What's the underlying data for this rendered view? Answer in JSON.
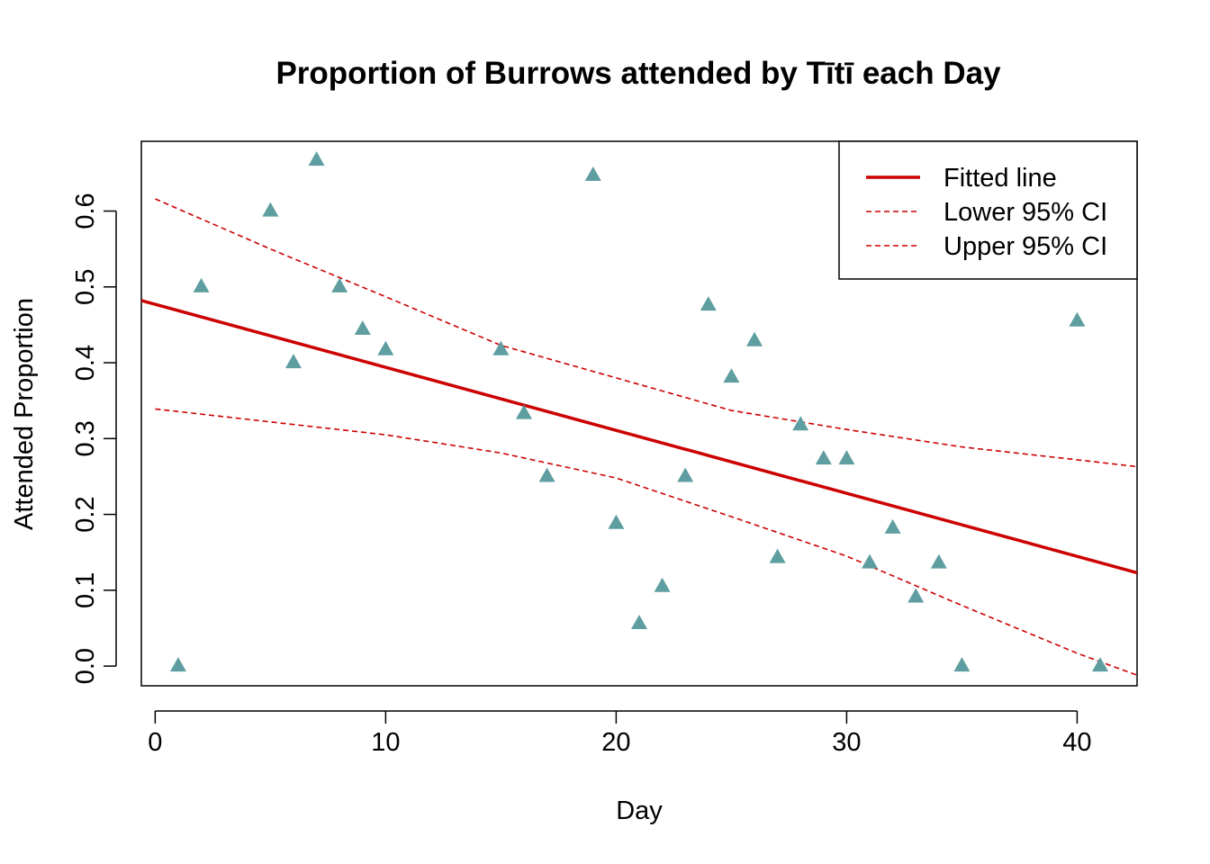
{
  "chart_data": {
    "type": "scatter",
    "title": "Proportion of Burrows attended by Tītī each Day",
    "xlabel": "Day",
    "ylabel": "Attended Proportion",
    "xlim": [
      -0.6,
      42.6
    ],
    "ylim": [
      -0.026,
      0.692
    ],
    "xticks": [
      0,
      10,
      20,
      30,
      40
    ],
    "yticks": [
      0.0,
      0.1,
      0.2,
      0.3,
      0.4,
      0.5,
      0.6
    ],
    "ytick_labels": [
      "0.0",
      "0.1",
      "0.2",
      "0.3",
      "0.4",
      "0.5",
      "0.6"
    ],
    "grid": false,
    "legend_position": "top-right",
    "point_color": "#5F9EA0",
    "line_color": "#CC0000",
    "points": {
      "x": [
        1,
        2,
        5,
        6,
        7,
        8,
        9,
        10,
        15,
        16,
        17,
        19,
        20,
        21,
        22,
        23,
        24,
        25,
        26,
        27,
        28,
        29,
        30,
        31,
        32,
        33,
        34,
        35,
        40,
        41
      ],
      "y": [
        0.0,
        0.5,
        0.6,
        0.4,
        0.667,
        0.5,
        0.444,
        0.417,
        0.417,
        0.333,
        0.25,
        0.647,
        0.188,
        0.056,
        0.105,
        0.25,
        0.476,
        0.381,
        0.429,
        0.143,
        0.318,
        0.273,
        0.273,
        0.136,
        0.182,
        0.091,
        0.136,
        0.0,
        0.455,
        0.0
      ]
    },
    "series": [
      {
        "name": "Fitted line",
        "style": "solid",
        "x": [
          -0.6,
          42.6
        ],
        "y": [
          0.482,
          0.123
        ]
      },
      {
        "name": "Lower 95% CI",
        "style": "dashed",
        "x": [
          0,
          5,
          10,
          15,
          20,
          25,
          30,
          35,
          40,
          42.6
        ],
        "y": [
          0.339,
          0.322,
          0.305,
          0.281,
          0.248,
          0.197,
          0.145,
          0.08,
          0.017,
          -0.012
        ]
      },
      {
        "name": "Upper 95% CI",
        "style": "dashed",
        "x": [
          0,
          5,
          10,
          15,
          20,
          25,
          30,
          35,
          40,
          42.6
        ],
        "y": [
          0.616,
          0.55,
          0.487,
          0.423,
          0.38,
          0.337,
          0.312,
          0.289,
          0.272,
          0.263
        ]
      }
    ]
  }
}
